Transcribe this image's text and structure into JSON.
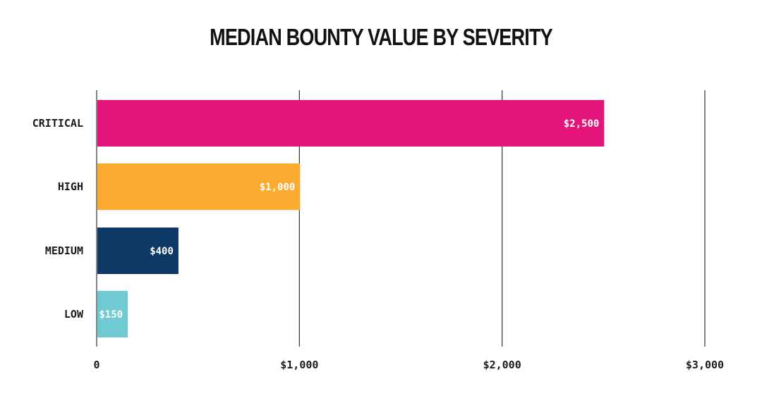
{
  "chart_data": {
    "type": "bar",
    "orientation": "horizontal",
    "title": "MEDIAN BOUNTY VALUE BY SEVERITY",
    "xlabel": "",
    "ylabel": "",
    "categories": [
      "CRITICAL",
      "HIGH",
      "MEDIUM",
      "LOW"
    ],
    "values": [
      2500,
      1000,
      400,
      150
    ],
    "value_labels": [
      "$2,500",
      "$1,000",
      "$400",
      "$150"
    ],
    "bar_colors": [
      "#e3147a",
      "#fbab30",
      "#0e3866",
      "#6fcad4"
    ],
    "xlim": [
      0,
      3000
    ],
    "x_ticks": [
      0,
      1000,
      2000,
      3000
    ],
    "x_tick_labels": [
      "0",
      "$1,000",
      "$2,000",
      "$3,000"
    ],
    "grid": "vertical",
    "legend": "none",
    "grid_color": "#333333"
  }
}
